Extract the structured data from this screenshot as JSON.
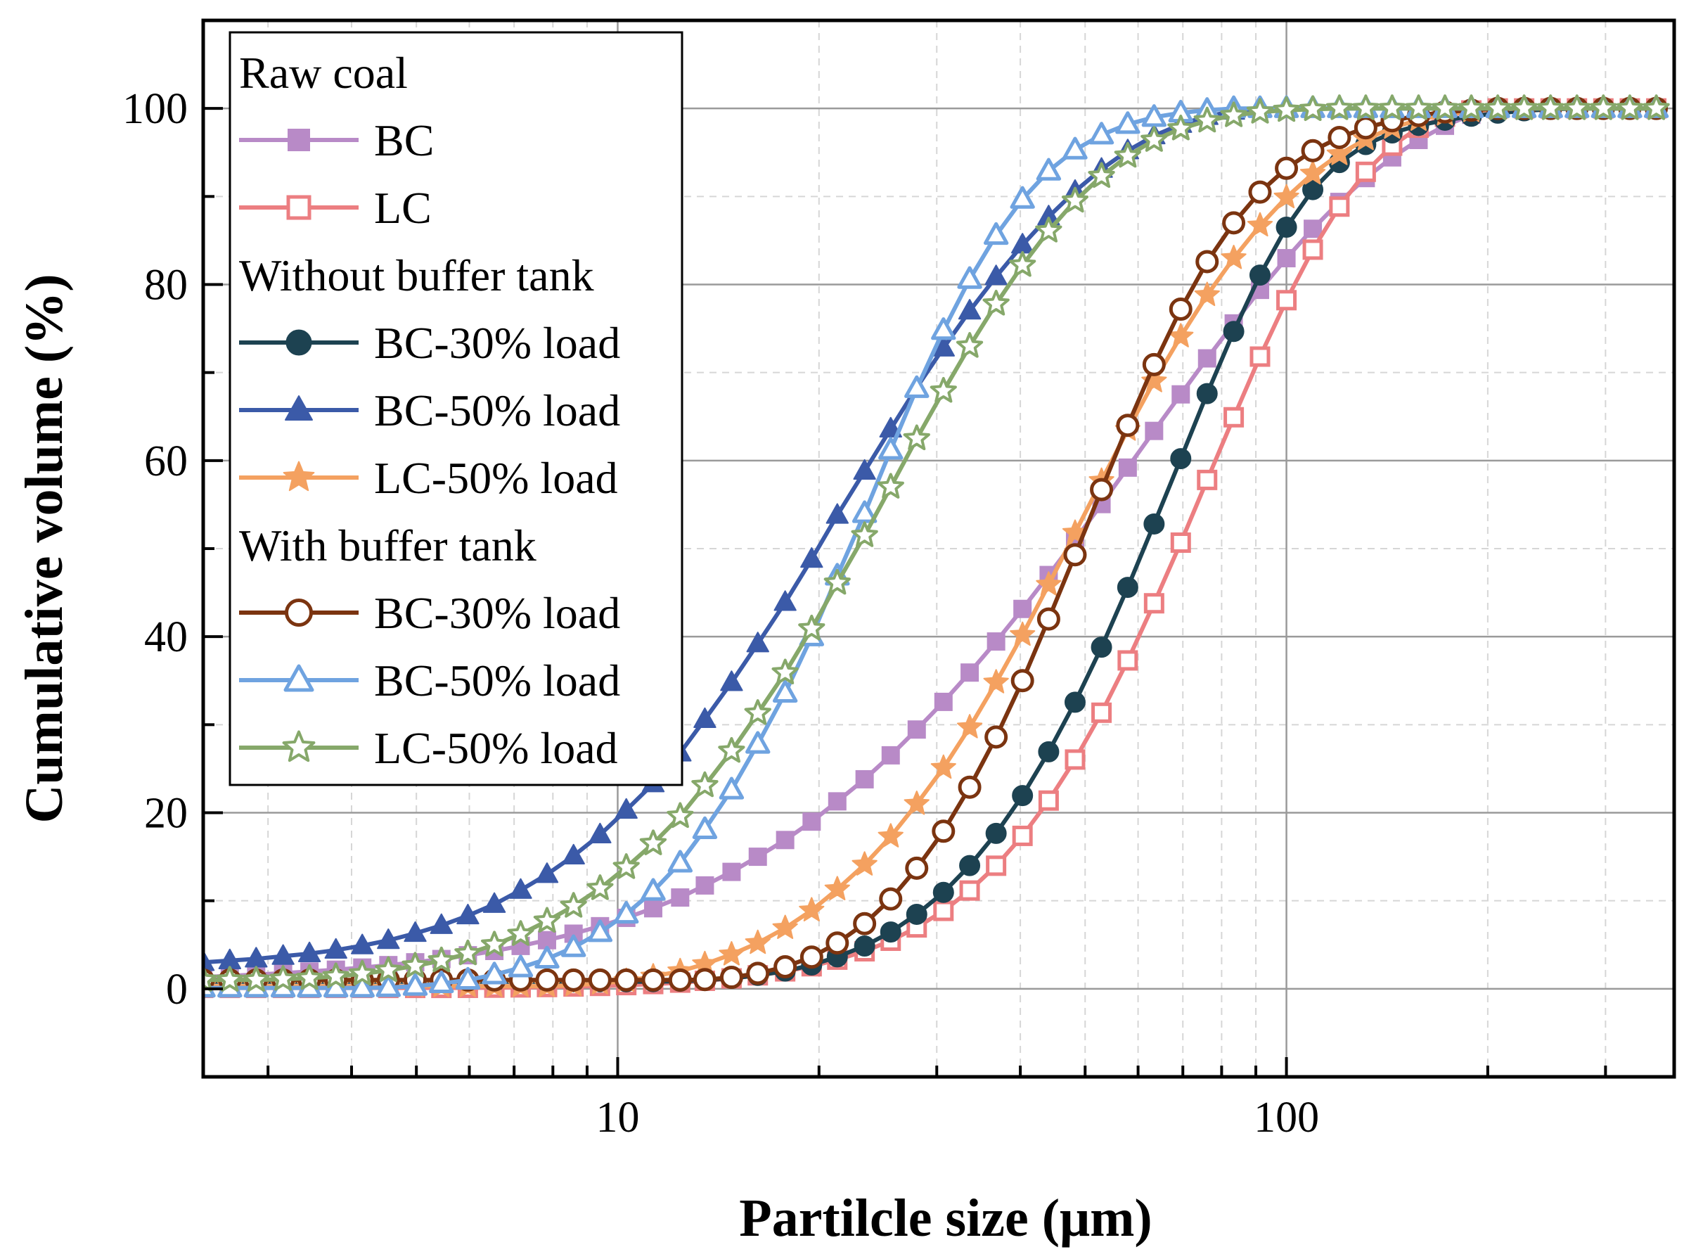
{
  "chart_data": {
    "type": "line",
    "xscale": "log",
    "xlabel": "Partilcle size (μm)",
    "ylabel": "Cumulative volume (%)",
    "xlim": [
      2.4,
      380
    ],
    "ylim": [
      -10,
      110
    ],
    "xticks": [
      {
        "value": 10,
        "label": "10"
      },
      {
        "value": 100,
        "label": "100"
      }
    ],
    "yticks": [
      {
        "value": 0,
        "label": "0"
      },
      {
        "value": 20,
        "label": "20"
      },
      {
        "value": 40,
        "label": "40"
      },
      {
        "value": 60,
        "label": "60"
      },
      {
        "value": 80,
        "label": "80"
      },
      {
        "value": 100,
        "label": "100"
      }
    ],
    "grid": true,
    "legend_position": "top-left",
    "legend_groups": [
      {
        "title": "Raw coal",
        "members": [
          0,
          1
        ]
      },
      {
        "title": "Without buffer tank",
        "members": [
          2,
          3,
          4
        ]
      },
      {
        "title": "With buffer tank",
        "members": [
          5,
          6,
          7
        ]
      }
    ],
    "x": [
      2.4,
      2.63,
      2.88,
      3.16,
      3.46,
      3.79,
      4.15,
      4.54,
      4.98,
      5.45,
      5.97,
      6.54,
      7.16,
      7.84,
      8.59,
      9.41,
      10.3,
      11.3,
      12.4,
      13.5,
      14.8,
      16.2,
      17.8,
      19.5,
      21.3,
      23.4,
      25.6,
      28.0,
      30.7,
      33.6,
      36.8,
      40.3,
      44.1,
      48.3,
      52.9,
      57.9,
      63.4,
      69.5,
      76.1,
      83.4,
      91.3,
      100.0,
      109.5,
      120.0,
      131.4,
      143.9,
      157.6,
      172.6,
      189.0,
      207.0,
      226.7,
      248.3,
      271.9,
      297.8,
      326.2,
      357.3
    ],
    "series": [
      {
        "name": "BC",
        "color": "#b88ac7",
        "marker": "square-filled",
        "values": [
          1.34,
          1.47,
          1.62,
          1.78,
          1.96,
          2.17,
          2.41,
          2.69,
          3.01,
          3.38,
          3.81,
          4.3,
          4.87,
          5.52,
          6.26,
          7.11,
          8.06,
          9.15,
          10.37,
          11.74,
          13.28,
          15.0,
          16.9,
          18.99,
          21.29,
          23.8,
          26.52,
          29.45,
          32.59,
          35.92,
          39.45,
          43.15,
          47.0,
          50.98,
          55.06,
          59.2,
          63.37,
          67.52,
          71.61,
          75.58,
          79.39,
          82.99,
          86.33,
          89.38,
          92.09,
          94.44,
          96.42,
          98.03,
          99.28,
          100.0,
          100.0,
          100.0,
          100.0,
          100.0,
          100.0,
          100.0
        ]
      },
      {
        "name": "LC",
        "color": "#ec7e81",
        "marker": "square-open",
        "values": [
          0.1,
          0.1,
          0.1,
          0.1,
          0.1,
          0.1,
          0.1,
          0.1,
          0.1,
          0.1,
          0.11,
          0.13,
          0.16,
          0.2,
          0.26,
          0.33,
          0.42,
          0.54,
          0.7,
          0.91,
          1.18,
          1.53,
          1.98,
          2.56,
          3.31,
          4.26,
          5.46,
          6.97,
          8.85,
          11.16,
          13.98,
          17.37,
          21.38,
          26.04,
          31.36,
          37.3,
          43.79,
          50.68,
          57.8,
          64.92,
          71.81,
          78.22,
          83.96,
          88.85,
          92.8,
          95.77,
          97.81,
          99.07,
          99.77,
          100.0,
          100.0,
          100.0,
          100.0,
          100.0,
          100.0,
          100.0
        ]
      },
      {
        "name": "BC-30% load",
        "color": "#1d4251",
        "marker": "circle-filled",
        "values": [
          0.8,
          0.8,
          0.8,
          0.8,
          0.8,
          0.8,
          0.8,
          0.8,
          0.8,
          0.8,
          0.8,
          0.8,
          0.8,
          0.8,
          0.8,
          0.8,
          0.8,
          0.81,
          0.86,
          0.98,
          1.19,
          1.52,
          2.01,
          2.7,
          3.63,
          4.86,
          6.45,
          8.46,
          10.95,
          14.0,
          17.65,
          21.95,
          26.92,
          32.55,
          38.8,
          45.6,
          52.8,
          60.22,
          67.61,
          74.67,
          81.07,
          86.51,
          90.78,
          93.85,
          95.9,
          97.22,
          98.07,
          98.66,
          99.11,
          99.46,
          99.73,
          99.9,
          99.98,
          100.0,
          100.0,
          100.0
        ]
      },
      {
        "name": "BC-50% load",
        "color": "#3b5aa8",
        "marker": "triangle-filled",
        "values": [
          3.0,
          3.2,
          3.4,
          3.7,
          4.0,
          4.4,
          4.9,
          5.5,
          6.3,
          7.2,
          8.3,
          9.6,
          11.2,
          13.0,
          15.1,
          17.5,
          20.3,
          23.3,
          26.8,
          30.6,
          34.8,
          39.2,
          43.9,
          48.8,
          53.8,
          58.8,
          63.6,
          68.3,
          72.8,
          77.0,
          80.9,
          84.5,
          87.7,
          90.6,
          93.1,
          95.2,
          96.9,
          98.2,
          99.1,
          99.7,
          100.0,
          100.0,
          100.0,
          100.0,
          100.0,
          100.0,
          100.0,
          100.0,
          100.0,
          100.0,
          100.0,
          100.0,
          100.0,
          100.0,
          100.0,
          100.0
        ]
      },
      {
        "name": "LC-50% load",
        "color": "#f4a160",
        "marker": "star-filled",
        "values": [
          0.3,
          0.3,
          0.3,
          0.3,
          0.3,
          0.3,
          0.3,
          0.3,
          0.3,
          0.3,
          0.3,
          0.3,
          0.3,
          0.3,
          0.4,
          0.6,
          0.9,
          1.4,
          2.0,
          2.8,
          3.9,
          5.2,
          6.9,
          8.9,
          11.3,
          14.1,
          17.3,
          21.0,
          25.1,
          29.7,
          34.8,
          40.2,
          45.9,
          51.8,
          57.7,
          63.5,
          69.0,
          74.1,
          78.8,
          83.0,
          86.7,
          89.9,
          92.6,
          94.8,
          96.5,
          97.8,
          98.7,
          99.3,
          99.7,
          99.9,
          100.0,
          100.0,
          100.0,
          100.0,
          100.0,
          100.0
        ]
      },
      {
        "name": "BC-30% load",
        "color": "#7b3410",
        "marker": "circle-open",
        "values": [
          1.0,
          1.0,
          1.0,
          1.0,
          1.0,
          1.0,
          1.0,
          1.0,
          1.0,
          1.0,
          1.0,
          1.0,
          1.0,
          1.0,
          1.0,
          1.0,
          1.0,
          1.0,
          1.0,
          1.05,
          1.3,
          1.75,
          2.5,
          3.6,
          5.2,
          7.4,
          10.2,
          13.7,
          17.9,
          22.9,
          28.6,
          35.0,
          42.0,
          49.3,
          56.7,
          64.0,
          70.9,
          77.2,
          82.6,
          87.0,
          90.5,
          93.2,
          95.2,
          96.7,
          97.8,
          98.6,
          99.2,
          99.6,
          99.8,
          100.0,
          100.0,
          100.0,
          100.0,
          100.0,
          100.0,
          100.0
        ]
      },
      {
        "name": "BC-50% load",
        "color": "#6fa3e0",
        "marker": "triangle-open",
        "values": [
          0.1,
          0.1,
          0.1,
          0.1,
          0.1,
          0.1,
          0.1,
          0.15,
          0.3,
          0.6,
          1.0,
          1.6,
          2.4,
          3.4,
          4.7,
          6.4,
          8.5,
          11.1,
          14.3,
          18.1,
          22.6,
          27.8,
          33.6,
          40.0,
          46.9,
          54.0,
          61.2,
          68.2,
          74.8,
          80.6,
          85.6,
          89.7,
          92.9,
          95.3,
          97.0,
          98.2,
          99.0,
          99.5,
          99.8,
          100.0,
          100.0,
          100.0,
          100.0,
          100.0,
          100.0,
          100.0,
          100.0,
          100.0,
          100.0,
          100.0,
          100.0,
          100.0,
          100.0,
          100.0,
          100.0,
          100.0
        ]
      },
      {
        "name": "LC-50% load",
        "color": "#86a86a",
        "marker": "star-open",
        "values": [
          1.0,
          1.0,
          1.0,
          1.1,
          1.2,
          1.4,
          1.7,
          2.1,
          2.6,
          3.2,
          4.0,
          5.0,
          6.2,
          7.7,
          9.4,
          11.4,
          13.8,
          16.5,
          19.6,
          23.1,
          27.0,
          31.3,
          35.9,
          40.9,
          46.1,
          51.5,
          57.0,
          62.5,
          67.9,
          73.0,
          77.8,
          82.2,
          86.1,
          89.5,
          92.3,
          94.6,
          96.4,
          97.7,
          98.6,
          99.2,
          99.6,
          99.8,
          99.9,
          100.0,
          100.0,
          100.0,
          100.0,
          100.0,
          100.0,
          100.0,
          100.0,
          100.0,
          100.0,
          100.0,
          100.0,
          100.0
        ]
      }
    ]
  }
}
